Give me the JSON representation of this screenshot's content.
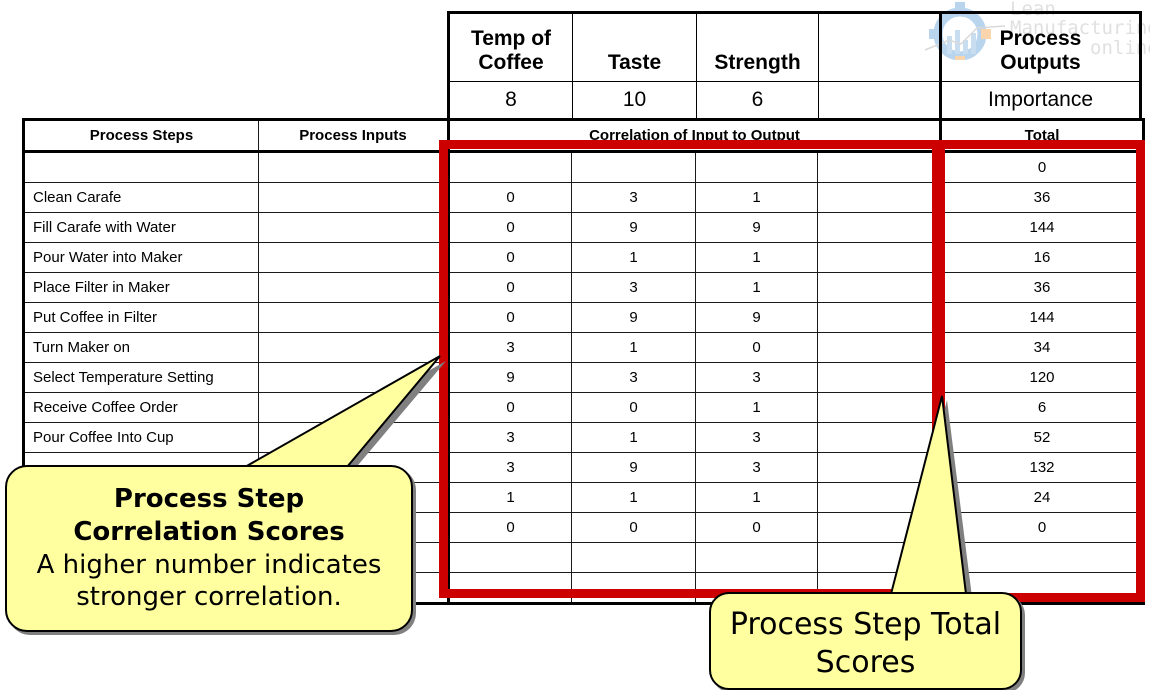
{
  "watermark": {
    "line1": "Lean",
    "line2": "Manufacturing",
    "line3": "online"
  },
  "outputs_header": {
    "columns": [
      {
        "label": "Temp of Coffee",
        "importance": "8"
      },
      {
        "label": "Taste",
        "importance": "10"
      },
      {
        "label": "Strength",
        "importance": "6"
      },
      {
        "label": "",
        "importance": ""
      }
    ],
    "process_outputs_label": "Process Outputs",
    "importance_label": "Importance"
  },
  "table": {
    "headers": {
      "steps": "Process Steps",
      "inputs": "Process Inputs",
      "correlation": "Correlation of Input to Output",
      "total": "Total"
    },
    "rows": [
      {
        "step": "",
        "input": "",
        "c1": "",
        "c2": "",
        "c3": "",
        "c4": "",
        "total": "0"
      },
      {
        "step": "Clean Carafe",
        "input": "",
        "c1": "0",
        "c2": "3",
        "c3": "1",
        "c4": "",
        "total": "36"
      },
      {
        "step": "Fill Carafe with Water",
        "input": "",
        "c1": "0",
        "c2": "9",
        "c3": "9",
        "c4": "",
        "total": "144"
      },
      {
        "step": "Pour Water into Maker",
        "input": "",
        "c1": "0",
        "c2": "1",
        "c3": "1",
        "c4": "",
        "total": "16"
      },
      {
        "step": "Place Filter in Maker",
        "input": "",
        "c1": "0",
        "c2": "3",
        "c3": "1",
        "c4": "",
        "total": "36"
      },
      {
        "step": "Put Coffee in Filter",
        "input": "",
        "c1": "0",
        "c2": "9",
        "c3": "9",
        "c4": "",
        "total": "144"
      },
      {
        "step": "Turn Maker on",
        "input": "",
        "c1": "3",
        "c2": "1",
        "c3": "0",
        "c4": "",
        "total": "34"
      },
      {
        "step": "Select Temperature Setting",
        "input": "",
        "c1": "9",
        "c2": "3",
        "c3": "3",
        "c4": "",
        "total": "120"
      },
      {
        "step": "Receive Coffee Order",
        "input": "",
        "c1": "0",
        "c2": "0",
        "c3": "1",
        "c4": "",
        "total": "6"
      },
      {
        "step": "Pour Coffee Into Cup",
        "input": "",
        "c1": "3",
        "c2": "1",
        "c3": "3",
        "c4": "",
        "total": "52"
      },
      {
        "step": "",
        "input": "",
        "c1": "3",
        "c2": "9",
        "c3": "3",
        "c4": "",
        "total": "132"
      },
      {
        "step": "",
        "input": "",
        "c1": "1",
        "c2": "1",
        "c3": "1",
        "c4": "",
        "total": "24"
      },
      {
        "step": "",
        "input": "",
        "c1": "0",
        "c2": "0",
        "c3": "0",
        "c4": "",
        "total": "0"
      },
      {
        "step": "",
        "input": "",
        "c1": "",
        "c2": "",
        "c3": "",
        "c4": "",
        "total": ""
      },
      {
        "step": "",
        "input": "",
        "c1": "",
        "c2": "",
        "c3": "",
        "c4": "",
        "total": ""
      }
    ]
  },
  "callouts": {
    "correlation": {
      "title_line1": "Process Step",
      "title_line2": "Correlation Scores",
      "body_line1": "A higher number indicates",
      "body_line2": "stronger correlation."
    },
    "totals": {
      "line1": "Process Step Total",
      "line2": "Scores"
    }
  },
  "colors": {
    "highlight_red": "#cc0000",
    "callout_fill": "#ffffa0"
  }
}
